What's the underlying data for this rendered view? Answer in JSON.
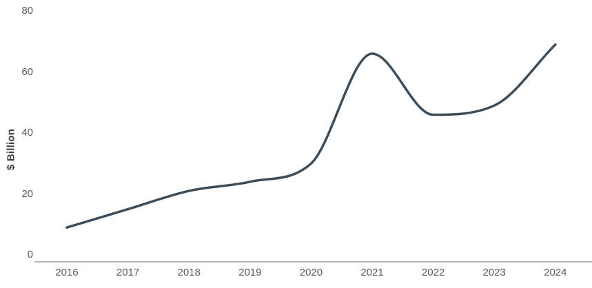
{
  "chart_data": {
    "type": "line",
    "title": "",
    "xlabel": "",
    "ylabel": "$ Billion",
    "categories": [
      "2016",
      "2017",
      "2018",
      "2019",
      "2020",
      "2021",
      "2022",
      "2023",
      "2024"
    ],
    "series": [
      {
        "name": "value",
        "values": [
          9,
          15,
          21,
          24,
          30,
          66,
          46,
          49,
          69
        ]
      }
    ],
    "ylim": [
      0,
      80
    ],
    "y_ticks_top_to_bottom": [
      80,
      60,
      40,
      20,
      0
    ],
    "grid": false,
    "legend_position": "none",
    "line_color": "#3d4c59",
    "axis_color": "#8c8c8c",
    "tick_label_color": "#595959",
    "ylabel_color": "#404040",
    "background_color": "#ffffff"
  }
}
